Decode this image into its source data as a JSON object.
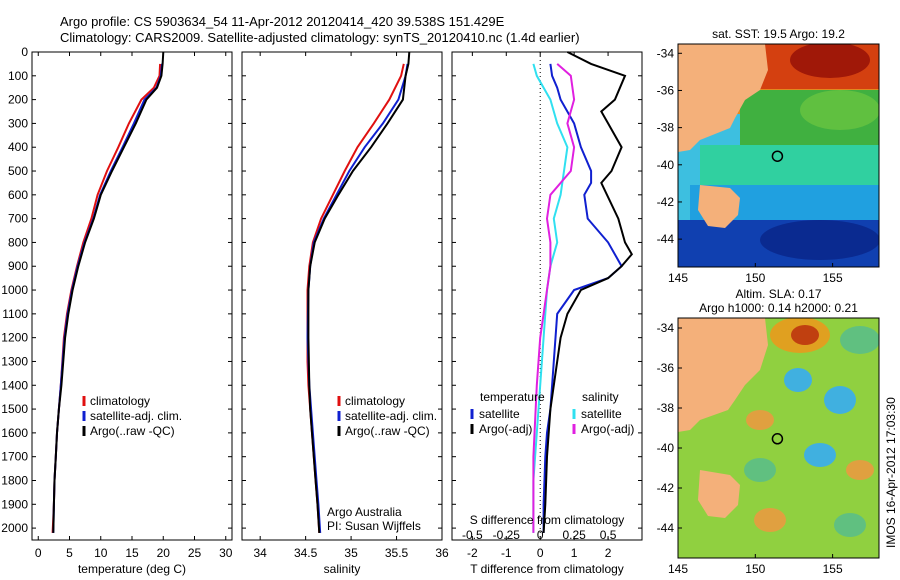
{
  "header": {
    "line1": "Argo profile: CS 5903634_54 11-Apr-2012 20120414_420 39.538S 151.429E",
    "line2": "Climatology: CARS2009. Satellite-adjusted climatology: synTS_20120410.nc (1.4d earlier)"
  },
  "colors": {
    "climatology": "#e01010",
    "satellite": "#1020d0",
    "argo": "#000000",
    "sat_salinity": "#30e0f0",
    "argo_salinity": "#e020e0"
  },
  "chart_data": [
    {
      "id": "temperature",
      "type": "line",
      "xlabel": "temperature (deg C)",
      "ylabel": "",
      "xlim": [
        -1,
        31
      ],
      "ylim": [
        2050,
        0
      ],
      "xticks": [
        0,
        5,
        10,
        15,
        20,
        25,
        30
      ],
      "yticks": [
        0,
        100,
        200,
        300,
        400,
        500,
        600,
        700,
        800,
        900,
        1000,
        1100,
        1200,
        1300,
        1400,
        1500,
        1600,
        1700,
        1800,
        1900,
        2000
      ],
      "legend": [
        "climatology",
        "satellite-adj. clim.",
        "Argo(..raw -QC)"
      ],
      "series": [
        {
          "name": "climatology",
          "color": "#e01010",
          "x": [
            19.5,
            19.4,
            18.5,
            16.5,
            14.5,
            12.8,
            11.0,
            9.5,
            8.5,
            7.2,
            6.2,
            5.3,
            4.6,
            4.1,
            3.6,
            3.3,
            3.0,
            2.8,
            2.6,
            2.5,
            2.3
          ],
          "y": [
            50,
            100,
            150,
            200,
            300,
            400,
            500,
            600,
            700,
            800,
            900,
            1000,
            1100,
            1200,
            1400,
            1500,
            1600,
            1700,
            1800,
            1900,
            2020
          ]
        },
        {
          "name": "satellite-adj. clim.",
          "color": "#1020d0",
          "x": [
            19.8,
            19.6,
            18.9,
            17.0,
            15.3,
            13.5,
            11.6,
            9.9,
            8.8,
            7.4,
            6.3,
            5.4,
            4.7,
            4.2,
            3.6,
            3.3,
            3.0,
            2.8,
            2.6,
            2.5,
            2.4
          ],
          "y": [
            50,
            100,
            150,
            200,
            300,
            400,
            500,
            600,
            700,
            800,
            900,
            1000,
            1100,
            1200,
            1400,
            1500,
            1600,
            1700,
            1800,
            1900,
            2020
          ]
        },
        {
          "name": "Argo(..raw -QC)",
          "color": "#000000",
          "x": [
            20.0,
            19.9,
            19.7,
            19.0,
            17.3,
            15.6,
            13.7,
            11.8,
            10.0,
            8.9,
            7.5,
            6.4,
            5.5,
            4.8,
            4.3,
            3.7,
            3.3,
            3.0,
            2.8,
            2.6,
            2.5,
            2.4
          ],
          "y": [
            0,
            50,
            100,
            150,
            200,
            300,
            400,
            500,
            600,
            700,
            800,
            900,
            1000,
            1100,
            1200,
            1400,
            1500,
            1600,
            1700,
            1800,
            1900,
            2020
          ]
        }
      ]
    },
    {
      "id": "salinity",
      "type": "line",
      "xlabel": "salinity",
      "ylabel": "",
      "xlim": [
        33.8,
        36.0
      ],
      "ylim": [
        2050,
        0
      ],
      "xticks": [
        34,
        34.5,
        35,
        35.5,
        36
      ],
      "legend": [
        "climatology",
        "satellite-adj. clim.",
        "Argo(..raw -QC)"
      ],
      "annotation": [
        "Argo Australia",
        "PI: Susan Wijffels"
      ],
      "series": [
        {
          "name": "climatology",
          "color": "#e01010",
          "x": [
            35.58,
            35.55,
            35.42,
            35.25,
            35.07,
            34.93,
            34.8,
            34.67,
            34.58,
            34.54,
            34.52,
            34.52,
            34.52,
            34.53,
            34.55,
            34.57,
            34.59,
            34.61,
            34.63,
            34.65
          ],
          "y": [
            50,
            100,
            200,
            300,
            400,
            500,
            600,
            700,
            800,
            900,
            1000,
            1200,
            1300,
            1400,
            1500,
            1600,
            1700,
            1800,
            1900,
            2020
          ]
        },
        {
          "name": "satellite-adj. clim.",
          "color": "#1020d0",
          "x": [
            35.62,
            35.6,
            35.52,
            35.35,
            35.15,
            34.98,
            34.84,
            34.7,
            34.59,
            34.55,
            34.53,
            34.52,
            34.53,
            34.54,
            34.56,
            34.58,
            34.6,
            34.62,
            34.64,
            34.66
          ],
          "y": [
            50,
            100,
            200,
            300,
            400,
            500,
            600,
            700,
            800,
            900,
            1000,
            1200,
            1300,
            1400,
            1500,
            1600,
            1700,
            1800,
            1900,
            2020
          ]
        },
        {
          "name": "Argo(..raw -QC)",
          "color": "#000000",
          "x": [
            35.64,
            35.63,
            35.6,
            35.57,
            35.4,
            35.22,
            35.02,
            34.86,
            34.71,
            34.6,
            34.55,
            34.53,
            34.53,
            34.54,
            34.55,
            34.57,
            34.59,
            34.61,
            34.63,
            34.65
          ],
          "y": [
            0,
            50,
            100,
            200,
            300,
            400,
            500,
            600,
            700,
            800,
            900,
            1000,
            1200,
            1400,
            1500,
            1600,
            1700,
            1800,
            1900,
            2020
          ]
        }
      ]
    },
    {
      "id": "differences",
      "type": "line",
      "xlabel": "T difference from climatology",
      "xlabel_top": "S difference from climatology",
      "ylabel": "",
      "xlim": [
        -2.6,
        3.0
      ],
      "ylim": [
        2050,
        0
      ],
      "xticks": [
        -2,
        -1,
        0,
        1,
        2
      ],
      "sticks_labels": [
        "-0.5",
        "-0.25",
        "0",
        "0.25",
        "0.5"
      ],
      "sticks_pos": [
        -2,
        -1,
        0,
        1,
        2
      ],
      "legend_t_title": "temperature",
      "legend_s_title": "salinity",
      "legend": [
        "satellite",
        "Argo(-adj)",
        "satellite",
        "Argo(-adj)"
      ],
      "series": [
        {
          "name": "satellite",
          "group": "temperature",
          "color": "#1020d0",
          "x": [
            0.3,
            0.35,
            0.5,
            0.6,
            1.0,
            1.2,
            1.5,
            1.5,
            1.3,
            1.4,
            2.0,
            2.4,
            2.0,
            1.0,
            0.5,
            0.4,
            0.3,
            0.2,
            0.15,
            0.1,
            0.1
          ],
          "y": [
            50,
            100,
            150,
            200,
            300,
            400,
            500,
            550,
            600,
            700,
            800,
            900,
            950,
            1000,
            1100,
            1300,
            1500,
            1600,
            1700,
            1900,
            2020
          ]
        },
        {
          "name": "Argo(-adj)",
          "group": "temperature",
          "color": "#000000",
          "x": [
            0.8,
            1.5,
            2.5,
            2.2,
            1.8,
            2.0,
            2.4,
            2.1,
            1.8,
            2.3,
            2.5,
            2.7,
            2.4,
            2.0,
            1.2,
            0.8,
            0.6,
            0.5,
            0.3,
            0.2,
            0.15,
            0.1
          ],
          "y": [
            0,
            50,
            100,
            200,
            250,
            300,
            400,
            500,
            550,
            700,
            800,
            850,
            900,
            950,
            1000,
            1100,
            1200,
            1300,
            1500,
            1700,
            1900,
            2020
          ]
        },
        {
          "name": "satellite",
          "group": "salinity",
          "color": "#30e0f0",
          "x": [
            -0.2,
            -0.1,
            0.3,
            0.5,
            0.8,
            0.7,
            0.6,
            0.4,
            0.5,
            0.3,
            0.2,
            0.1,
            0.0,
            -0.1,
            -0.2,
            -0.2
          ],
          "y": [
            50,
            100,
            200,
            300,
            400,
            500,
            600,
            700,
            800,
            900,
            1000,
            1200,
            1400,
            1600,
            1800,
            2020
          ]
        },
        {
          "name": "Argo(-adj)",
          "group": "salinity",
          "color": "#e020e0",
          "x": [
            0.5,
            0.9,
            1.0,
            0.8,
            1.0,
            0.9,
            0.3,
            0.2,
            0.3,
            0.3,
            0.2,
            0.0,
            -0.1,
            -0.2,
            -0.2
          ],
          "y": [
            50,
            100,
            200,
            300,
            400,
            500,
            600,
            700,
            800,
            900,
            1000,
            1200,
            1400,
            1700,
            2020
          ]
        }
      ]
    },
    {
      "id": "sst_map",
      "type": "heatmap",
      "title": "sat. SST: 19.5  Argo: 19.2",
      "xticks": [
        145,
        150,
        155
      ],
      "yticks": [
        -34,
        -36,
        -38,
        -40,
        -42,
        -44
      ],
      "xlim": [
        145,
        158
      ],
      "ylim": [
        -45.5,
        -33.5
      ],
      "marker": [
        151.43,
        -39.54
      ]
    },
    {
      "id": "sla_map",
      "type": "heatmap",
      "title_line1": "Altim. SLA: 0.17",
      "title_line2": "Argo h1000: 0.14  h2000: 0.21",
      "xticks": [
        145,
        150,
        155
      ],
      "yticks": [
        -34,
        -36,
        -38,
        -40,
        -42,
        -44
      ],
      "xlim": [
        145,
        158
      ],
      "ylim": [
        -45.5,
        -33.5
      ],
      "marker": [
        151.43,
        -39.54
      ]
    }
  ],
  "side_label": "IMOS 16-Apr-2012 17:03:30"
}
